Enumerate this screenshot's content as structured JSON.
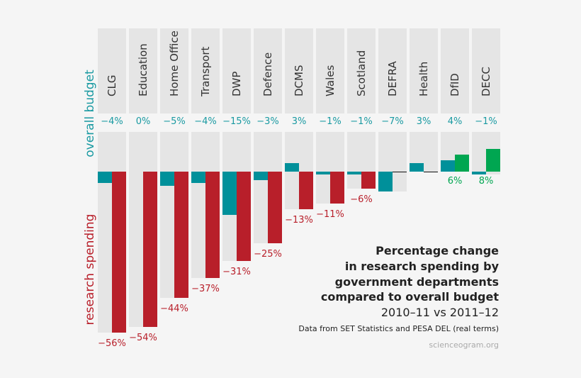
{
  "chart_data": {
    "type": "bar",
    "title": "Percentage change in research spending by government departments compared to overall budget",
    "title_lines": [
      "Percentage change",
      "in research spending by",
      "government departments",
      "compared to overall budget"
    ],
    "subtitle": "2010–11 vs 2011–12",
    "source": "Data from SET Statistics and PESA DEL (real terms)",
    "credit": "scienceogram.org",
    "categories": [
      "CLG",
      "Education",
      "Home Office",
      "Transport",
      "DWP",
      "Defence",
      "DCMS",
      "Wales",
      "Scotland",
      "DEFRA",
      "Health",
      "DfID",
      "DECC"
    ],
    "series": [
      {
        "name": "overall budget",
        "values": [
          -4,
          0,
          -5,
          -4,
          -15,
          -3,
          3,
          -1,
          -1,
          -7,
          3,
          4,
          -1
        ],
        "labels": [
          "−4%",
          "0%",
          "−5%",
          "−4%",
          "−15%",
          "−3%",
          "3%",
          "−1%",
          "−1%",
          "−7%",
          "3%",
          "4%",
          "−1%"
        ]
      },
      {
        "name": "research spending",
        "values": [
          -56,
          -54,
          -44,
          -37,
          -31,
          -25,
          -13,
          -11,
          -6,
          0,
          0,
          6,
          8
        ],
        "labels": [
          "−56%",
          "−54%",
          "−44%",
          "−37%",
          "−31%",
          "−25%",
          "−13%",
          "−11%",
          "−6%",
          "",
          "",
          "6%",
          "8%"
        ]
      }
    ],
    "colors": {
      "budget": "#00909a",
      "research_negative": "#b81f2a",
      "research_positive": "#00a651",
      "panel": "#e5e5e5"
    }
  }
}
